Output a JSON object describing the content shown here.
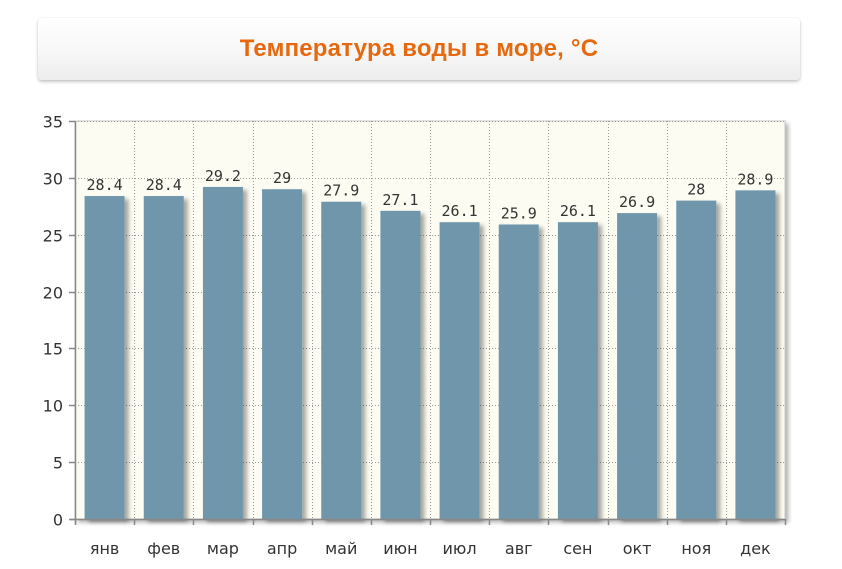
{
  "chart_data": {
    "type": "bar",
    "title": "Температура воды в море, °C",
    "categories": [
      "янв",
      "фев",
      "мар",
      "апр",
      "май",
      "июн",
      "июл",
      "авг",
      "сен",
      "окт",
      "ноя",
      "дек"
    ],
    "values": [
      28.4,
      28.4,
      29.2,
      29,
      27.9,
      27.1,
      26.1,
      25.9,
      26.1,
      26.9,
      28,
      28.9
    ],
    "data_labels": [
      "28.4",
      "28.4",
      "29.2",
      "29",
      "27.9",
      "27.1",
      "26.1",
      "25.9",
      "26.1",
      "26.9",
      "28",
      "28.9"
    ],
    "yticks": [
      "0",
      "5",
      "10",
      "15",
      "20",
      "25",
      "30",
      "35"
    ],
    "ylim": [
      0,
      35
    ],
    "xlabel": "",
    "ylabel": "",
    "grid": true,
    "legend": "none",
    "colors": {
      "bar": "#6f96ac",
      "plot_background": "#fdfcf2",
      "grid": "#999999",
      "title": "#e5690f"
    }
  }
}
